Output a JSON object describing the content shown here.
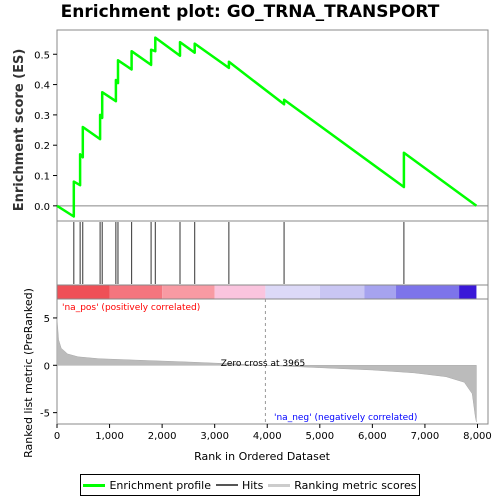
{
  "chart_data": {
    "type": "line",
    "title": "Enrichment plot: GO_TRNA_TRANSPORT",
    "es_panel": {
      "ylabel": "Enrichment score (ES)",
      "ylim": [
        -0.05,
        0.58
      ],
      "yticks": [
        0.0,
        0.1,
        0.2,
        0.3,
        0.4,
        0.5
      ],
      "ytick_labels": [
        "0.0",
        "0.1",
        "0.2",
        "0.3",
        "0.4",
        "0.5"
      ],
      "line_color": "#00ff00",
      "hits": [
        320,
        440,
        490,
        820,
        860,
        1120,
        1160,
        1420,
        1790,
        1870,
        2340,
        2620,
        3270,
        4320,
        6600
      ],
      "es_before": [
        -0.035,
        0.068,
        0.16,
        0.22,
        0.29,
        0.345,
        0.405,
        0.45,
        0.465,
        0.51,
        0.495,
        0.505,
        0.455,
        0.335,
        0.062
      ],
      "es_after": [
        0.08,
        0.17,
        0.26,
        0.3,
        0.375,
        0.415,
        0.48,
        0.51,
        0.515,
        0.555,
        0.54,
        0.535,
        0.475,
        0.35,
        0.175
      ],
      "end": 7980
    },
    "rank_panel": {
      "ylabel": "Ranked list metric (PreRanked)",
      "xlabel": "Rank in Ordered Dataset",
      "xlim": [
        0,
        8200
      ],
      "ylim": [
        -6.2,
        7.0
      ],
      "xticks": [
        0,
        1000,
        2000,
        3000,
        4000,
        5000,
        6000,
        7000,
        8000
      ],
      "xtick_labels": [
        "0",
        "1,000",
        "2,000",
        "3,000",
        "4,000",
        "5,000",
        "6,000",
        "7,000",
        "8,000"
      ],
      "yticks": [
        -5,
        0,
        5
      ],
      "ytick_labels": [
        "-5",
        "0",
        "5"
      ],
      "zero_cross": 3965,
      "zero_cross_label": "Zero cross at 3965",
      "pos_label": "'na_pos' (positively correlated)",
      "neg_label": "'na_neg' (negatively correlated)",
      "pos_color": "#ff0000",
      "neg_color": "#0000ff",
      "fill_color": "#bbbbbb",
      "profile": [
        {
          "x": 0,
          "y": 5.0
        },
        {
          "x": 30,
          "y": 2.7
        },
        {
          "x": 80,
          "y": 1.8
        },
        {
          "x": 200,
          "y": 1.2
        },
        {
          "x": 400,
          "y": 0.9
        },
        {
          "x": 800,
          "y": 0.7
        },
        {
          "x": 1500,
          "y": 0.55
        },
        {
          "x": 2500,
          "y": 0.35
        },
        {
          "x": 3500,
          "y": 0.12
        },
        {
          "x": 3965,
          "y": 0.0
        },
        {
          "x": 5000,
          "y": -0.25
        },
        {
          "x": 6000,
          "y": -0.5
        },
        {
          "x": 6800,
          "y": -0.8
        },
        {
          "x": 7400,
          "y": -1.2
        },
        {
          "x": 7750,
          "y": -1.8
        },
        {
          "x": 7900,
          "y": -3.0
        },
        {
          "x": 7960,
          "y": -5.5
        },
        {
          "x": 7980,
          "y": -6.0
        }
      ],
      "colorbar": [
        {
          "from": 0,
          "to": 1000,
          "color": "#ef5057"
        },
        {
          "from": 1000,
          "to": 2000,
          "color": "#f4757e"
        },
        {
          "from": 2000,
          "to": 3000,
          "color": "#f89aa3"
        },
        {
          "from": 3000,
          "to": 3965,
          "color": "#fac4de"
        },
        {
          "from": 3965,
          "to": 5000,
          "color": "#dcd9f7"
        },
        {
          "from": 5000,
          "to": 5850,
          "color": "#c9c6f3"
        },
        {
          "from": 5850,
          "to": 6450,
          "color": "#a6a3ef"
        },
        {
          "from": 6450,
          "to": 7650,
          "color": "#7d74ea"
        },
        {
          "from": 7650,
          "to": 7980,
          "color": "#3a18d8"
        }
      ]
    }
  },
  "legend": {
    "items": [
      {
        "label": "Enrichment profile",
        "color": "#00ff00"
      },
      {
        "label": "Hits",
        "color": "#555555"
      },
      {
        "label": "Ranking metric scores",
        "color": "#cccccc"
      }
    ]
  }
}
